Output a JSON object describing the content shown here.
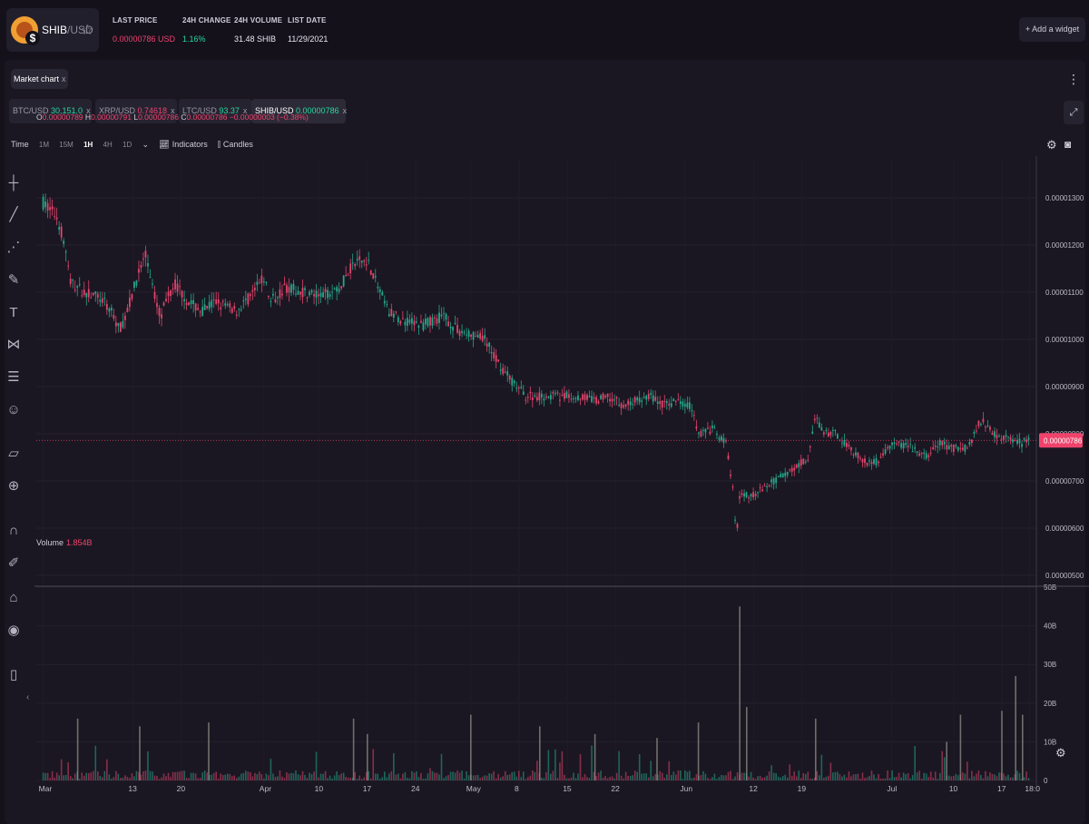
{
  "header": {
    "pair_base": "SHIB",
    "pair_quote": "/USD",
    "stats": [
      {
        "label": "LAST PRICE",
        "value": "0.00000786 USD",
        "tone": "neg"
      },
      {
        "label": "24H CHANGE",
        "value": "1.16%",
        "tone": "pos"
      },
      {
        "label": "24H VOLUME",
        "value": "31.48 SHIB",
        "tone": "white"
      },
      {
        "label": "LIST DATE",
        "value": "11/29/2021",
        "tone": "white"
      }
    ],
    "add_widget": "+ Add a widget"
  },
  "panel": {
    "tab_label": "Market chart",
    "tab_close": "x",
    "menu_icon": "⋮"
  },
  "tickers": [
    {
      "symbol": "BTC/USD",
      "price": "30,151.0",
      "tone": "pos",
      "close": "x",
      "active": false
    },
    {
      "symbol": "XRP/USD",
      "price": "0.74618",
      "tone": "neg",
      "close": "x",
      "active": false
    },
    {
      "symbol": "LTC/USD",
      "price": "93.37",
      "tone": "pos",
      "close": "x",
      "active": false
    },
    {
      "symbol": "SHIB/USD",
      "price": "0.00000786",
      "tone": "pos",
      "close": "x",
      "active": true
    }
  ],
  "toolbar": {
    "time_label": "Time",
    "intervals": [
      "1M",
      "15M",
      "1H",
      "4H",
      "1D"
    ],
    "active_interval": "1H",
    "indicators": "Indicators",
    "candles": "Candles"
  },
  "ohlc": {
    "o": "0.00000789",
    "h": "0.00000791",
    "l": "0.00000786",
    "c": "0.00000786",
    "change": "−0.00000003 (−0.38%)"
  },
  "volume": {
    "label": "Volume",
    "value": "1.854B"
  },
  "colors": {
    "up": "#26a68a",
    "down": "#e0446b",
    "bg": "#1a1722",
    "grid": "#24212d",
    "price_tag": "#f0436c"
  },
  "chart_data": {
    "type": "candlestick",
    "y_ticks": [
      "0.00001300",
      "0.00001200",
      "0.00001100",
      "0.00001000",
      "0.00000900",
      "0.00000800",
      "0.00000700",
      "0.00000600",
      "0.00000500"
    ],
    "y_range": [
      5e-06,
      1.3e-05
    ],
    "current_price": "0.00000786",
    "current_price_value": 7.86e-06,
    "x_ticks": [
      "Mar",
      "13",
      "20",
      "Apr",
      "10",
      "17",
      "24",
      "May",
      "8",
      "15",
      "22",
      "Jun",
      "12",
      "19",
      "Jul",
      "10",
      "17",
      "18:0"
    ],
    "x_tick_days": [
      0,
      13,
      20,
      32,
      40,
      47,
      54,
      62,
      69,
      76,
      83,
      93,
      103,
      110,
      123,
      132,
      139,
      143
    ],
    "day_range": [
      -1,
      144
    ],
    "price_path": [
      [
        0,
        12.9
      ],
      [
        2,
        12.6
      ],
      [
        3,
        12.1
      ],
      [
        4,
        11.2
      ],
      [
        6,
        11.0
      ],
      [
        8,
        10.9
      ],
      [
        10,
        10.6
      ],
      [
        11,
        10.2
      ],
      [
        12,
        10.5
      ],
      [
        14,
        11.5
      ],
      [
        15,
        11.8
      ],
      [
        16,
        11.0
      ],
      [
        17,
        10.5
      ],
      [
        19,
        11.2
      ],
      [
        21,
        10.8
      ],
      [
        23,
        10.6
      ],
      [
        25,
        10.8
      ],
      [
        28,
        10.6
      ],
      [
        30,
        10.9
      ],
      [
        32,
        11.3
      ],
      [
        33,
        10.8
      ],
      [
        35,
        11.1
      ],
      [
        38,
        11.0
      ],
      [
        40,
        10.9
      ],
      [
        43,
        11.1
      ],
      [
        45,
        11.6
      ],
      [
        47,
        11.7
      ],
      [
        48,
        11.3
      ],
      [
        50,
        10.6
      ],
      [
        52,
        10.4
      ],
      [
        55,
        10.3
      ],
      [
        58,
        10.5
      ],
      [
        60,
        10.2
      ],
      [
        62,
        10.1
      ],
      [
        64,
        10.0
      ],
      [
        66,
        9.5
      ],
      [
        68,
        9.1
      ],
      [
        70,
        8.8
      ],
      [
        72,
        8.8
      ],
      [
        75,
        8.8
      ],
      [
        78,
        8.8
      ],
      [
        80,
        8.7
      ],
      [
        82,
        8.8
      ],
      [
        84,
        8.6
      ],
      [
        86,
        8.7
      ],
      [
        88,
        8.8
      ],
      [
        90,
        8.6
      ],
      [
        92,
        8.7
      ],
      [
        94,
        8.6
      ],
      [
        95,
        8.0
      ],
      [
        97,
        8.1
      ],
      [
        99,
        7.8
      ],
      [
        100,
        6.8
      ],
      [
        100.5,
        5.8
      ],
      [
        101,
        6.7
      ],
      [
        103,
        6.7
      ],
      [
        105,
        6.9
      ],
      [
        107,
        7.1
      ],
      [
        109,
        7.3
      ],
      [
        111,
        7.5
      ],
      [
        112,
        8.4
      ],
      [
        113,
        8.0
      ],
      [
        115,
        8.0
      ],
      [
        117,
        7.7
      ],
      [
        119,
        7.4
      ],
      [
        121,
        7.4
      ],
      [
        123,
        7.8
      ],
      [
        126,
        7.7
      ],
      [
        128,
        7.5
      ],
      [
        130,
        7.8
      ],
      [
        132,
        7.7
      ],
      [
        134,
        7.7
      ],
      [
        136,
        8.3
      ],
      [
        138,
        8.0
      ],
      [
        140,
        7.9
      ],
      [
        142,
        7.8
      ],
      [
        143,
        7.9
      ]
    ],
    "volume_ticks": [
      "50B",
      "40B",
      "30B",
      "20B",
      "10B",
      "0"
    ],
    "volume_range": [
      0,
      50
    ],
    "volume_spikes": [
      [
        5,
        16
      ],
      [
        14,
        14
      ],
      [
        24,
        15
      ],
      [
        45,
        16
      ],
      [
        47,
        12
      ],
      [
        62,
        17
      ],
      [
        72,
        14
      ],
      [
        80,
        12
      ],
      [
        89,
        11
      ],
      [
        95,
        15
      ],
      [
        101,
        45
      ],
      [
        102,
        19
      ],
      [
        112,
        16
      ],
      [
        131,
        10
      ],
      [
        133,
        17
      ],
      [
        139,
        18
      ],
      [
        141,
        27
      ],
      [
        142,
        17
      ]
    ]
  }
}
